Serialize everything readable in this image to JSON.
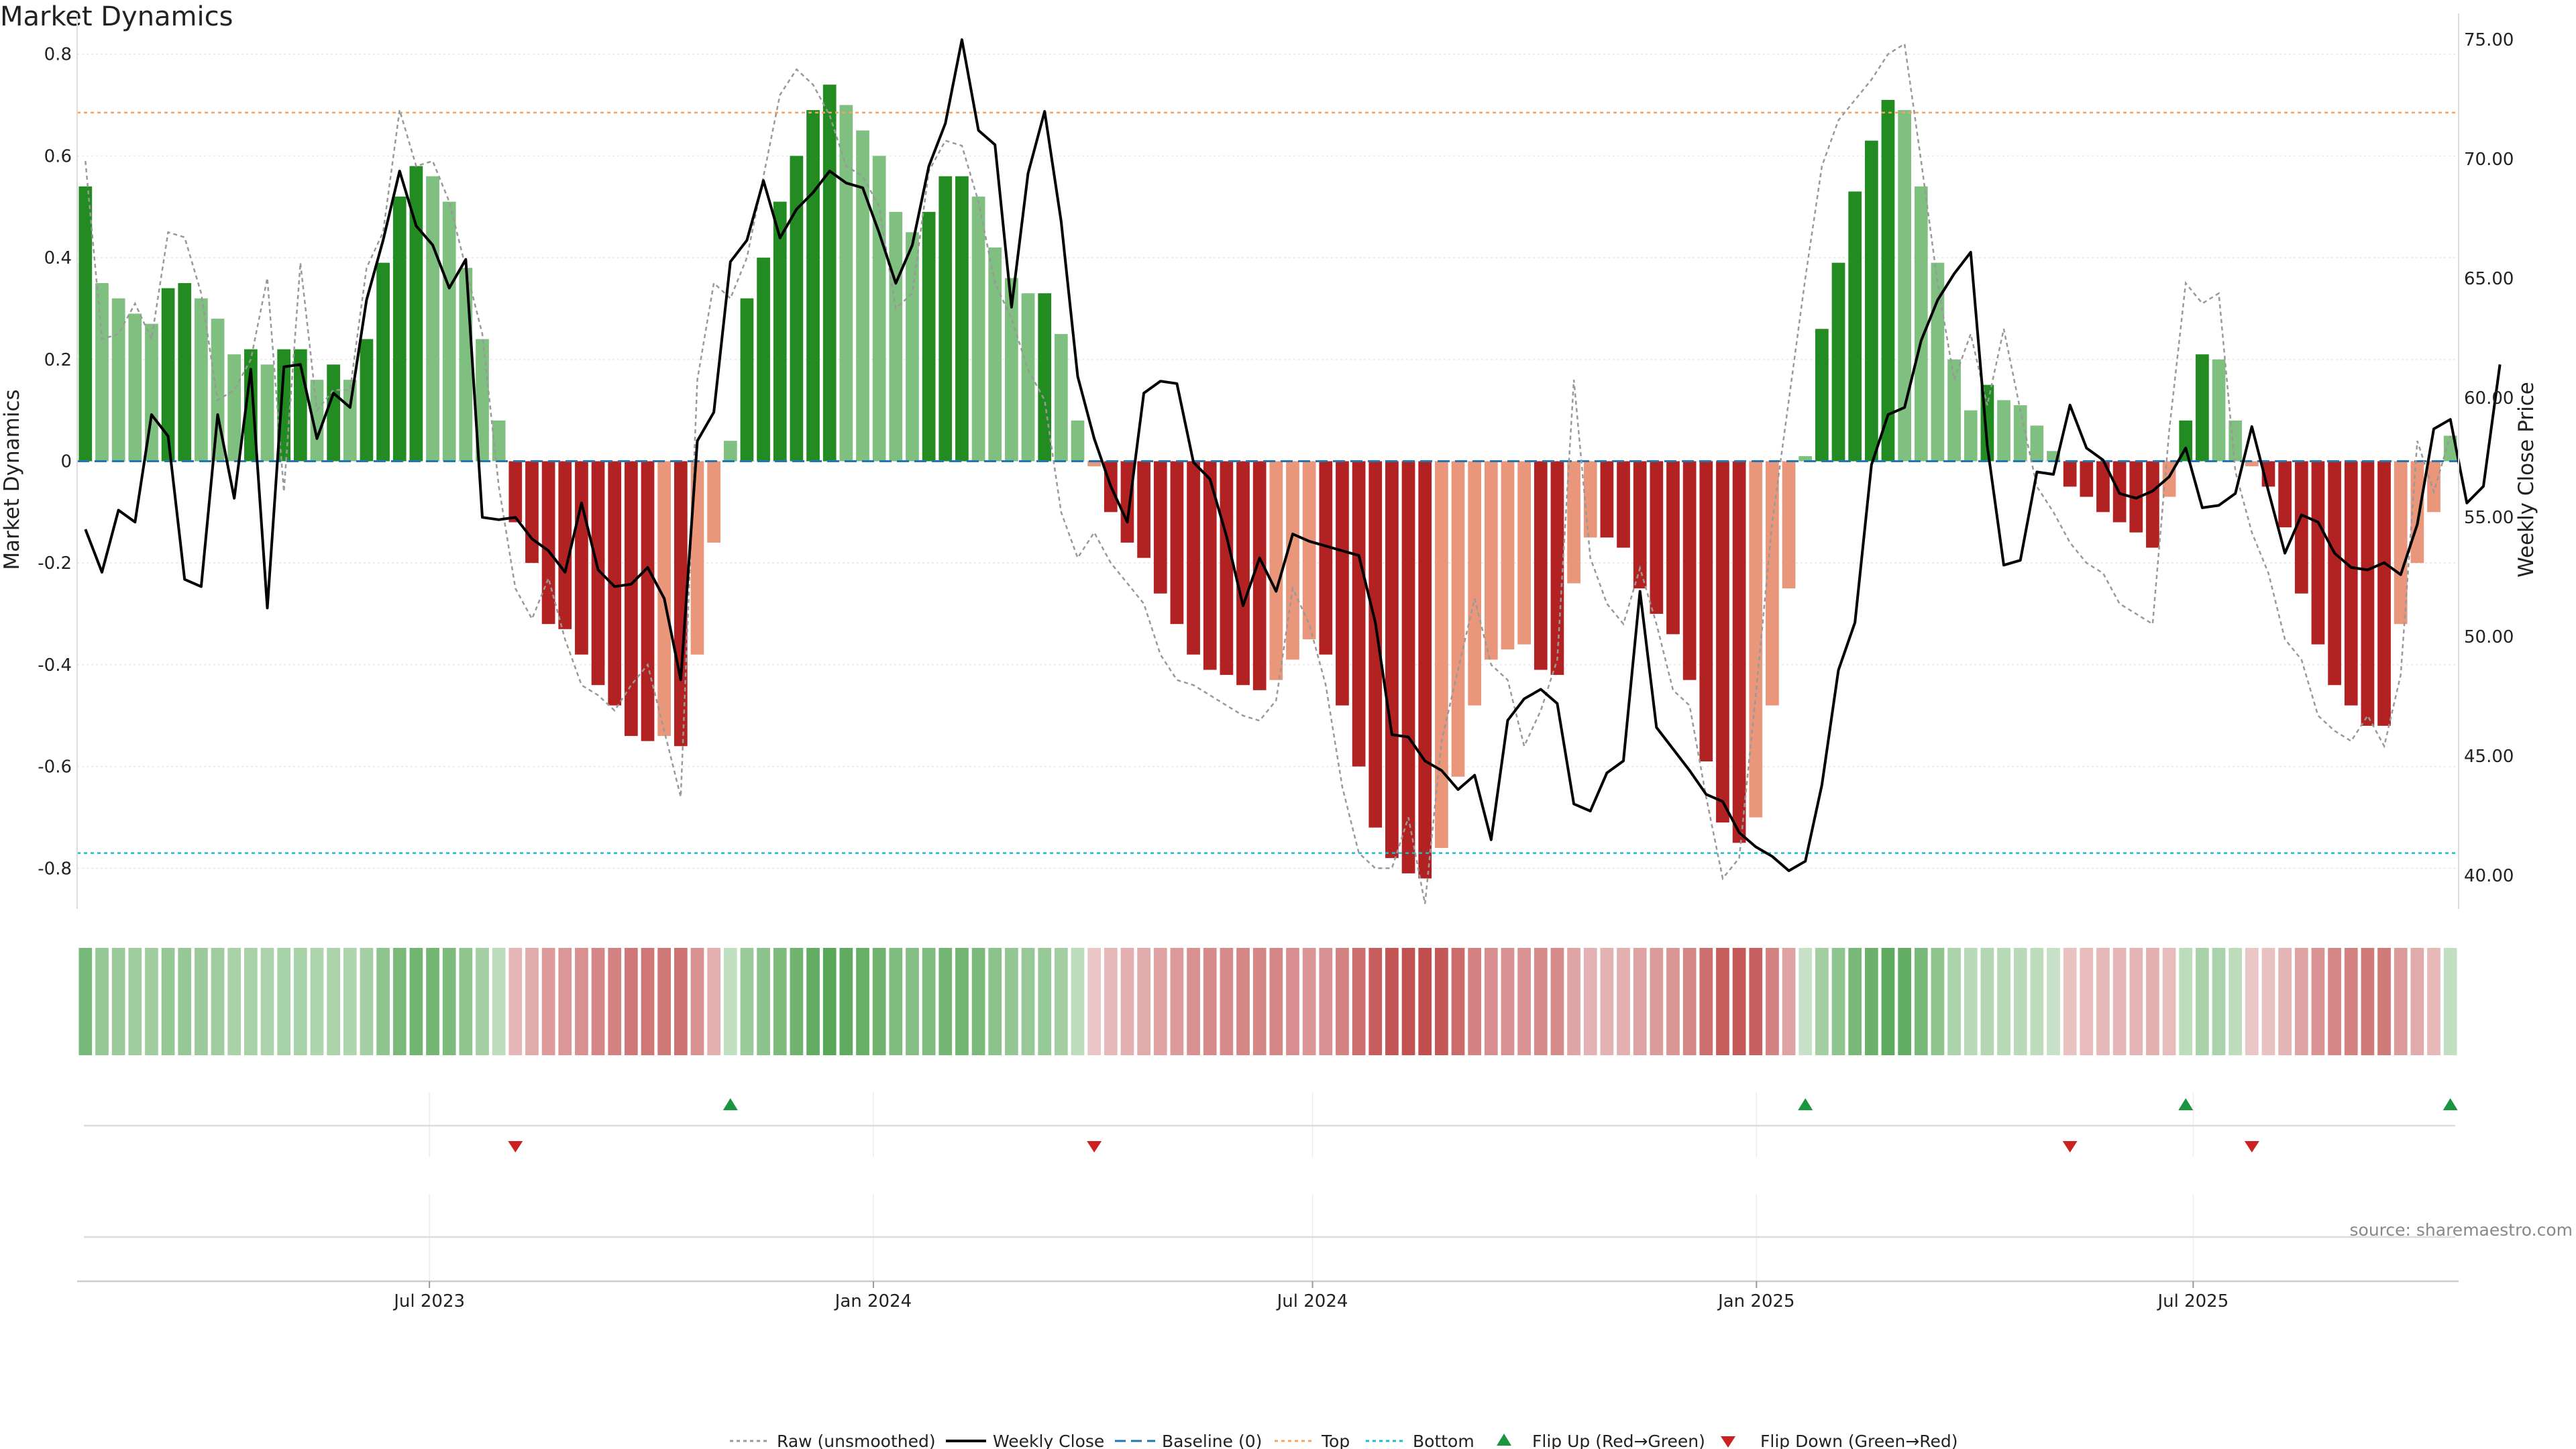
{
  "chart_data": {
    "type": "bar",
    "title": "Market Dynamics",
    "ylabel_left": "Market Dynamics",
    "ylabel_right": "Weekly Close Price",
    "source": "source: sharemaestro.com",
    "ylim_left": [
      -0.88,
      0.88
    ],
    "ylim_right": [
      38.6,
      76.1
    ],
    "yticks_left": [
      "0.8",
      "0.6",
      "0.4",
      "0.2",
      "0",
      "-0.2",
      "-0.4",
      "-0.6",
      "-0.8"
    ],
    "yticks_right": [
      "75.00",
      "70.00",
      "65.00",
      "60.00",
      "55.00",
      "50.00",
      "45.00",
      "40.00"
    ],
    "x_start": "2023-02-05",
    "x_end": "2025-10-19",
    "x_ticks": [
      {
        "date": "2023-07-01",
        "label": "Jul 2023"
      },
      {
        "date": "2024-01-01",
        "label": "Jan 2024"
      },
      {
        "date": "2024-07-01",
        "label": "Jul 2024"
      },
      {
        "date": "2025-01-01",
        "label": "Jan 2025"
      },
      {
        "date": "2025-07-01",
        "label": "Jul 2025"
      }
    ],
    "top_line": 0.685,
    "bottom_line": -0.77,
    "baseline": 0,
    "weeks": 143,
    "bar_values": [
      0.54,
      0.35,
      0.32,
      0.29,
      0.27,
      0.34,
      0.35,
      0.32,
      0.28,
      0.21,
      0.22,
      0.19,
      0.22,
      0.22,
      0.16,
      0.19,
      0.16,
      0.24,
      0.39,
      0.52,
      0.58,
      0.56,
      0.51,
      0.38,
      0.24,
      0.08,
      -0.12,
      -0.2,
      -0.32,
      -0.33,
      -0.38,
      -0.44,
      -0.48,
      -0.54,
      -0.55,
      -0.54,
      -0.56,
      -0.38,
      -0.16,
      0.04,
      0.32,
      0.4,
      0.51,
      0.6,
      0.69,
      0.74,
      0.7,
      0.65,
      0.6,
      0.49,
      0.45,
      0.49,
      0.56,
      0.56,
      0.52,
      0.42,
      0.36,
      0.33,
      0.33,
      0.25,
      0.08,
      -0.01,
      -0.1,
      -0.16,
      -0.19,
      -0.26,
      -0.32,
      -0.38,
      -0.41,
      -0.42,
      -0.44,
      -0.45,
      -0.43,
      -0.39,
      -0.35,
      -0.38,
      -0.48,
      -0.6,
      -0.72,
      -0.78,
      -0.81,
      -0.82,
      -0.76,
      -0.62,
      -0.48,
      -0.39,
      -0.37,
      -0.36,
      -0.41,
      -0.42,
      -0.24,
      -0.15,
      -0.15,
      -0.17,
      -0.25,
      -0.3,
      -0.34,
      -0.43,
      -0.59,
      -0.71,
      -0.75,
      -0.7,
      -0.48,
      -0.25,
      0.01,
      0.26,
      0.39,
      0.53,
      0.63,
      0.71,
      0.69,
      0.54,
      0.39,
      0.2,
      0.1,
      0.15,
      0.12,
      0.11,
      0.07,
      0.02,
      -0.05,
      -0.07,
      -0.1,
      -0.12,
      -0.14,
      -0.17,
      -0.07,
      0.08,
      0.21,
      0.2,
      0.08,
      -0.01,
      -0.05,
      -0.13,
      -0.26,
      -0.36,
      -0.44,
      -0.48,
      -0.52,
      -0.52,
      -0.32,
      -0.2,
      -0.1,
      0.05
    ],
    "raw_values": [
      0.59,
      0.24,
      0.25,
      0.31,
      0.24,
      0.45,
      0.44,
      0.33,
      0.12,
      0.14,
      0.2,
      0.36,
      -0.06,
      0.39,
      0.1,
      0.14,
      0.14,
      0.38,
      0.45,
      0.69,
      0.58,
      0.59,
      0.51,
      0.38,
      0.25,
      -0.05,
      -0.25,
      -0.31,
      -0.23,
      -0.35,
      -0.44,
      -0.46,
      -0.49,
      -0.44,
      -0.4,
      -0.53,
      -0.66,
      0.16,
      0.35,
      0.32,
      0.4,
      0.56,
      0.72,
      0.77,
      0.74,
      0.68,
      0.58,
      0.56,
      0.5,
      0.3,
      0.33,
      0.57,
      0.63,
      0.62,
      0.51,
      0.35,
      0.28,
      0.18,
      0.12,
      -0.1,
      -0.19,
      -0.14,
      -0.2,
      -0.24,
      -0.28,
      -0.38,
      -0.43,
      -0.44,
      -0.46,
      -0.48,
      -0.5,
      -0.51,
      -0.47,
      -0.25,
      -0.32,
      -0.44,
      -0.64,
      -0.77,
      -0.8,
      -0.8,
      -0.7,
      -0.87,
      -0.55,
      -0.41,
      -0.27,
      -0.4,
      -0.43,
      -0.56,
      -0.49,
      -0.39,
      0.16,
      -0.19,
      -0.28,
      -0.32,
      -0.21,
      -0.32,
      -0.45,
      -0.48,
      -0.66,
      -0.82,
      -0.78,
      -0.46,
      -0.12,
      0.12,
      0.36,
      0.58,
      0.67,
      0.71,
      0.75,
      0.8,
      0.82,
      0.59,
      0.35,
      0.16,
      0.25,
      0.11,
      0.26,
      0.1,
      -0.05,
      -0.1,
      -0.16,
      -0.2,
      -0.22,
      -0.28,
      -0.3,
      -0.32,
      0.06,
      0.35,
      0.31,
      0.33,
      -0.02,
      -0.14,
      -0.22,
      -0.35,
      -0.39,
      -0.5,
      -0.53,
      -0.55,
      -0.5,
      -0.56,
      -0.42,
      0.04,
      -0.06,
      0.05
    ],
    "close_prices": [
      54.5,
      52.7,
      55.3,
      54.8,
      59.3,
      58.4,
      52.4,
      52.1,
      59.3,
      55.8,
      61.2,
      51.2,
      61.3,
      61.4,
      58.3,
      60.2,
      59.6,
      64.1,
      66.6,
      69.5,
      67.2,
      66.4,
      64.6,
      65.8,
      55.0,
      54.9,
      55.0,
      54.1,
      53.6,
      52.7,
      55.6,
      52.8,
      52.1,
      52.2,
      52.9,
      51.6,
      48.2,
      58.2,
      59.4,
      65.7,
      66.6,
      69.1,
      66.7,
      67.9,
      68.6,
      69.5,
      69.0,
      68.8,
      66.9,
      64.8,
      66.4,
      69.7,
      71.5,
      75.0,
      71.2,
      70.6,
      63.8,
      69.4,
      72.0,
      67.4,
      60.9,
      58.3,
      56.3,
      54.8,
      60.2,
      60.7,
      60.6,
      57.3,
      56.6,
      54.2,
      51.3,
      53.3,
      51.9,
      54.3,
      54.0,
      53.8,
      53.6,
      53.4,
      50.6,
      45.9,
      45.8,
      44.8,
      44.4,
      43.6,
      44.2,
      41.5,
      46.5,
      47.4,
      47.8,
      47.2,
      43.0,
      42.7,
      44.3,
      44.8,
      51.9,
      46.2,
      45.3,
      44.4,
      43.4,
      43.1,
      41.8,
      41.2,
      40.8,
      40.2,
      40.6,
      43.8,
      48.6,
      50.6,
      57.2,
      59.3,
      59.6,
      62.4,
      64.1,
      65.2,
      66.1,
      58.0,
      53.0,
      53.2,
      56.9,
      56.8,
      59.7,
      57.9,
      57.4,
      56.0,
      55.8,
      56.1,
      56.7,
      57.9,
      55.4,
      55.5,
      56.0,
      58.8,
      56.1,
      53.5,
      55.1,
      54.8,
      53.5,
      52.9,
      52.8,
      53.1,
      52.6,
      54.7,
      58.7,
      59.1,
      55.6,
      56.3,
      61.4
    ]
  },
  "legend": {
    "raw": "Raw (unsmoothed)",
    "close": "Weekly Close",
    "baseline": "Baseline (0)",
    "top": "Top",
    "bottom": "Bottom",
    "flip_up": "Flip Up (Red→Green)",
    "flip_down": "Flip Down (Green→Red)"
  },
  "colors": {
    "strong_green": "#228b22",
    "light_green": "#7fbf7f",
    "strong_red": "#b22222",
    "light_red": "#e9967a",
    "raw_line": "#999999",
    "close_line": "#000000",
    "baseline": "#1f77b4",
    "top": "#f4a460",
    "bottom": "#17becf",
    "flip_up": "#1a9641",
    "flip_down": "#cc2222"
  }
}
